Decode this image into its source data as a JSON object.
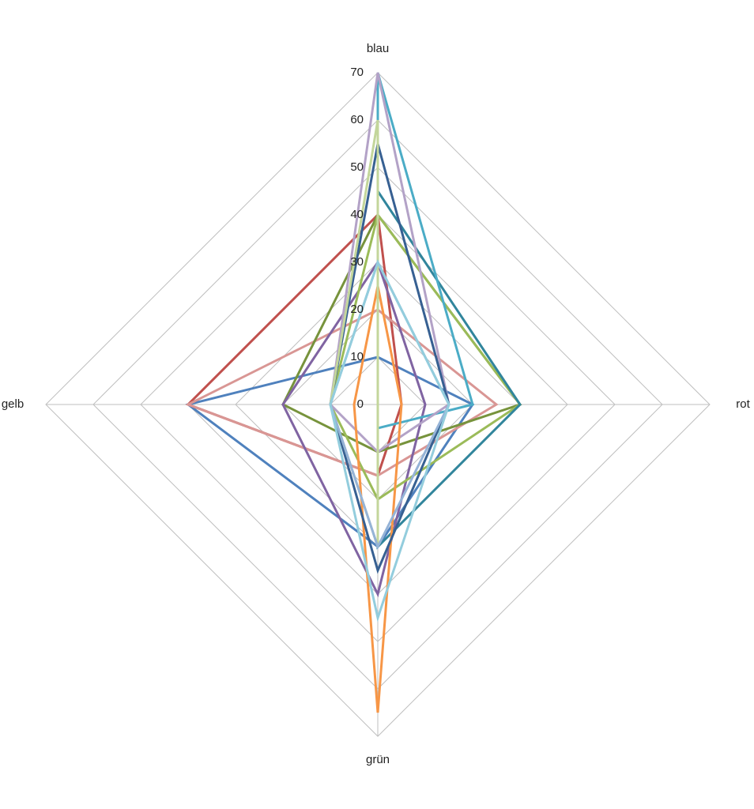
{
  "chart_data": {
    "type": "radar",
    "categories": [
      "blau",
      "rot",
      "grün",
      "gelb"
    ],
    "ylim": [
      0,
      70
    ],
    "yticks": [
      0,
      10,
      20,
      30,
      40,
      50,
      60,
      70
    ],
    "grid": true,
    "series": [
      {
        "color": "#4f81bd",
        "values": [
          10,
          20,
          30,
          40
        ]
      },
      {
        "color": "#c0504d",
        "values": [
          40,
          5,
          15,
          40
        ]
      },
      {
        "color": "#d99694",
        "values": [
          20,
          25,
          15,
          40
        ]
      },
      {
        "color": "#77933c",
        "values": [
          40,
          30,
          10,
          20
        ]
      },
      {
        "color": "#8064a2",
        "values": [
          30,
          10,
          40,
          20
        ]
      },
      {
        "color": "#9bbb59",
        "values": [
          40,
          30,
          20,
          10
        ]
      },
      {
        "color": "#31859c",
        "values": [
          45,
          30,
          30,
          0
        ]
      },
      {
        "color": "#4bacc6",
        "values": [
          70,
          20,
          5,
          0
        ]
      },
      {
        "color": "#b3a2c7",
        "values": [
          70,
          15,
          10,
          10
        ]
      },
      {
        "color": "#f79646",
        "values": [
          25,
          5,
          65,
          5
        ]
      },
      {
        "color": "#376092",
        "values": [
          55,
          15,
          35,
          10
        ]
      },
      {
        "color": "#c3d69b",
        "values": [
          60,
          0,
          30,
          10
        ]
      },
      {
        "color": "#95b3d7",
        "values": [
          30,
          15,
          30,
          10
        ]
      },
      {
        "color": "#93cddd",
        "values": [
          30,
          15,
          45,
          10
        ]
      }
    ]
  }
}
